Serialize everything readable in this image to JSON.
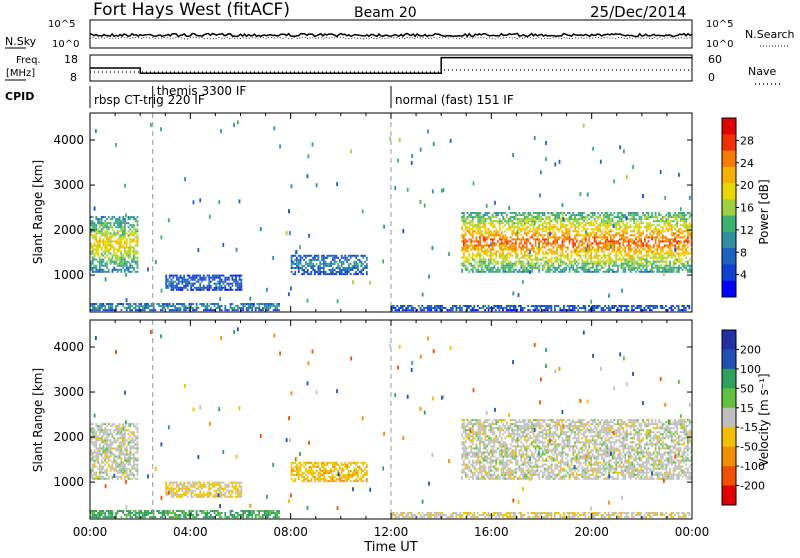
{
  "header": {
    "site": "Fort Hays West (fitACF)",
    "beam": "Beam 20",
    "date": "25/Dec/2014"
  },
  "strips": {
    "nsky_label": "N.Sky",
    "nsky_ticks": [
      "10^5",
      "10^0"
    ],
    "nsearch_label": "N.Search",
    "nsearch_ticks": [
      "10^5",
      "10^0"
    ],
    "freq_label_1": "Freq.",
    "freq_label_2": "[MHz]",
    "freq_ticks": [
      "18",
      "8"
    ],
    "nave_label": "Nave",
    "nave_ticks": [
      "60",
      "0"
    ],
    "cpid_label": "CPID"
  },
  "cpid_segments": [
    {
      "label": "rbsp CT-trig 220 IF",
      "start_h": 0,
      "end_h": 2.5
    },
    {
      "label": "themis 3300 IF",
      "start_h": 2.5,
      "end_h": 12
    },
    {
      "label": "normal (fast) 151 IF",
      "start_h": 12,
      "end_h": 24
    }
  ],
  "freq_steps": [
    {
      "start_h": 0,
      "end_h": 2.0,
      "mhz": 13
    },
    {
      "start_h": 2.0,
      "end_h": 14.0,
      "mhz": 11
    },
    {
      "start_h": 14.0,
      "end_h": 24.0,
      "mhz": 17
    }
  ],
  "panels": {
    "power": {
      "ylabel": "Slant Range [km]",
      "cbar_label": "Power [dB]",
      "cbar_ticks": [
        "28",
        "24",
        "20",
        "16",
        "12",
        "8",
        "4"
      ],
      "cbar_colors": [
        "#e00000",
        "#f03000",
        "#f57a00",
        "#f5b000",
        "#e8d800",
        "#a0d040",
        "#40b070",
        "#3090a0",
        "#2060c0",
        "#1040d0",
        "#0000ff"
      ]
    },
    "velocity": {
      "ylabel": "Slant Range [km]",
      "cbar_label": "Velocity [m s⁻¹]",
      "cbar_ticks": [
        "200",
        "100",
        "50",
        "15",
        "-15",
        "-50",
        "-100",
        "-200"
      ],
      "cbar_colors": [
        "#2030a0",
        "#2050b0",
        "#30a060",
        "#60c040",
        "#c0c0c0",
        "#f0c000",
        "#f09000",
        "#f05000",
        "#e00000"
      ]
    }
  },
  "x_axis": {
    "label": "Time UT",
    "ticks": [
      "00:00",
      "04:00",
      "08:00",
      "12:00",
      "16:00",
      "20:00",
      "00:00"
    ]
  },
  "chart_data": {
    "type": "heatmap",
    "title": "Fort Hays West (fitACF)",
    "xlabel": "Time UT",
    "ylabel": "Slant Range [km]",
    "xlim_hours": [
      0,
      24
    ],
    "ylim_km": [
      180,
      4600
    ],
    "yticks_km": [
      1000,
      2000,
      3000,
      4000
    ],
    "cpid_boundaries_h": [
      2.5,
      12
    ],
    "power_scale_db": [
      0,
      30
    ],
    "velocity_scale": [
      -250,
      250
    ],
    "echo_regions": [
      {
        "t0": 0.0,
        "t1": 1.9,
        "r0": 1050,
        "r1": 2300,
        "power": 17,
        "velocity": 0
      },
      {
        "t0": 0.0,
        "t1": 7.5,
        "r0": 200,
        "r1": 350,
        "power": 10,
        "velocity": 40
      },
      {
        "t0": 3.0,
        "t1": 6.0,
        "r0": 650,
        "r1": 1000,
        "power": 6,
        "velocity": -20
      },
      {
        "t0": 8.0,
        "t1": 11.0,
        "r0": 1000,
        "r1": 1450,
        "power": 8,
        "velocity": -40
      },
      {
        "t0": 12.0,
        "t1": 24.0,
        "r0": 200,
        "r1": 320,
        "power": 6,
        "velocity": -10
      },
      {
        "t0": 14.8,
        "t1": 24.0,
        "r0": 1050,
        "r1": 2400,
        "power": 22,
        "velocity": 0
      }
    ]
  }
}
